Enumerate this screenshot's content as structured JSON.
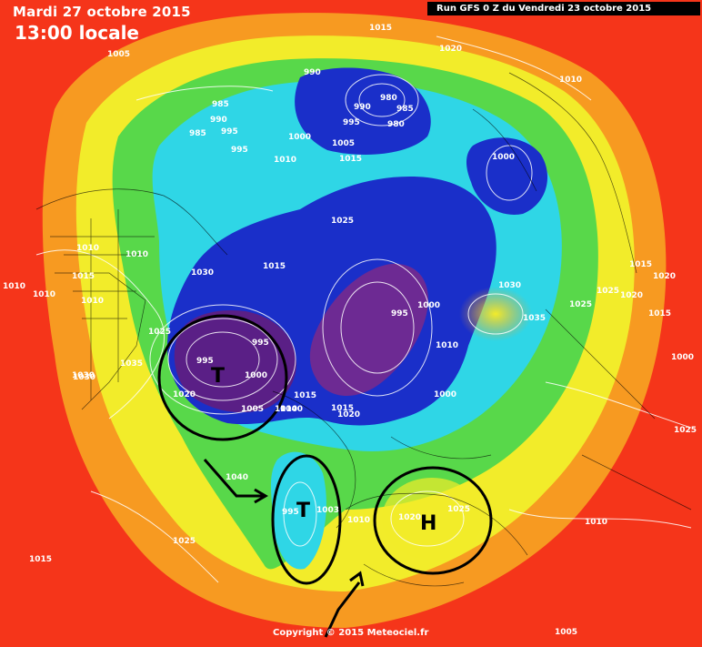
{
  "header": {
    "date": "Mardi 27 octobre 2015",
    "time": "13:00 locale",
    "run": "Run GFS 0 Z du Vendredi 23 octobre 2015"
  },
  "footer": {
    "copyright": "Copyright © 2015 Meteociel.fr"
  },
  "pressure_labels": [
    "1015",
    "1020",
    "1005",
    "990",
    "985",
    "980",
    "990",
    "985",
    "995",
    "980",
    "990",
    "995",
    "985",
    "995",
    "1000",
    "1005",
    "1010",
    "1010",
    "1015",
    "1000",
    "1025",
    "1010",
    "1010",
    "1015",
    "1030",
    "1015",
    "1010",
    "1010",
    "1030",
    "1035",
    "1030",
    "1025",
    "1035",
    "1025",
    "1015",
    "1020",
    "1015",
    "1020",
    "1025",
    "1000",
    "995",
    "1010",
    "995",
    "1000",
    "995",
    "1020",
    "1005",
    "1010",
    "1015",
    "1015",
    "1020",
    "1000",
    "1040",
    "1025",
    "1030",
    "1000",
    "995",
    "1010",
    "1003",
    "1020",
    "1025",
    "1025",
    "1010",
    "1015",
    "1005",
    "1010",
    "1040"
  ],
  "systems": [
    {
      "symbol": "T"
    },
    {
      "symbol": "T"
    },
    {
      "symbol": "H"
    }
  ],
  "colors": {
    "low_core": "#5a1f86",
    "deep_blue": "#1a2fc9",
    "green": "#58d84a",
    "yellow": "#f2ec2a",
    "orange": "#f79a21",
    "red": "#f5351a",
    "annotation": "#000000"
  }
}
